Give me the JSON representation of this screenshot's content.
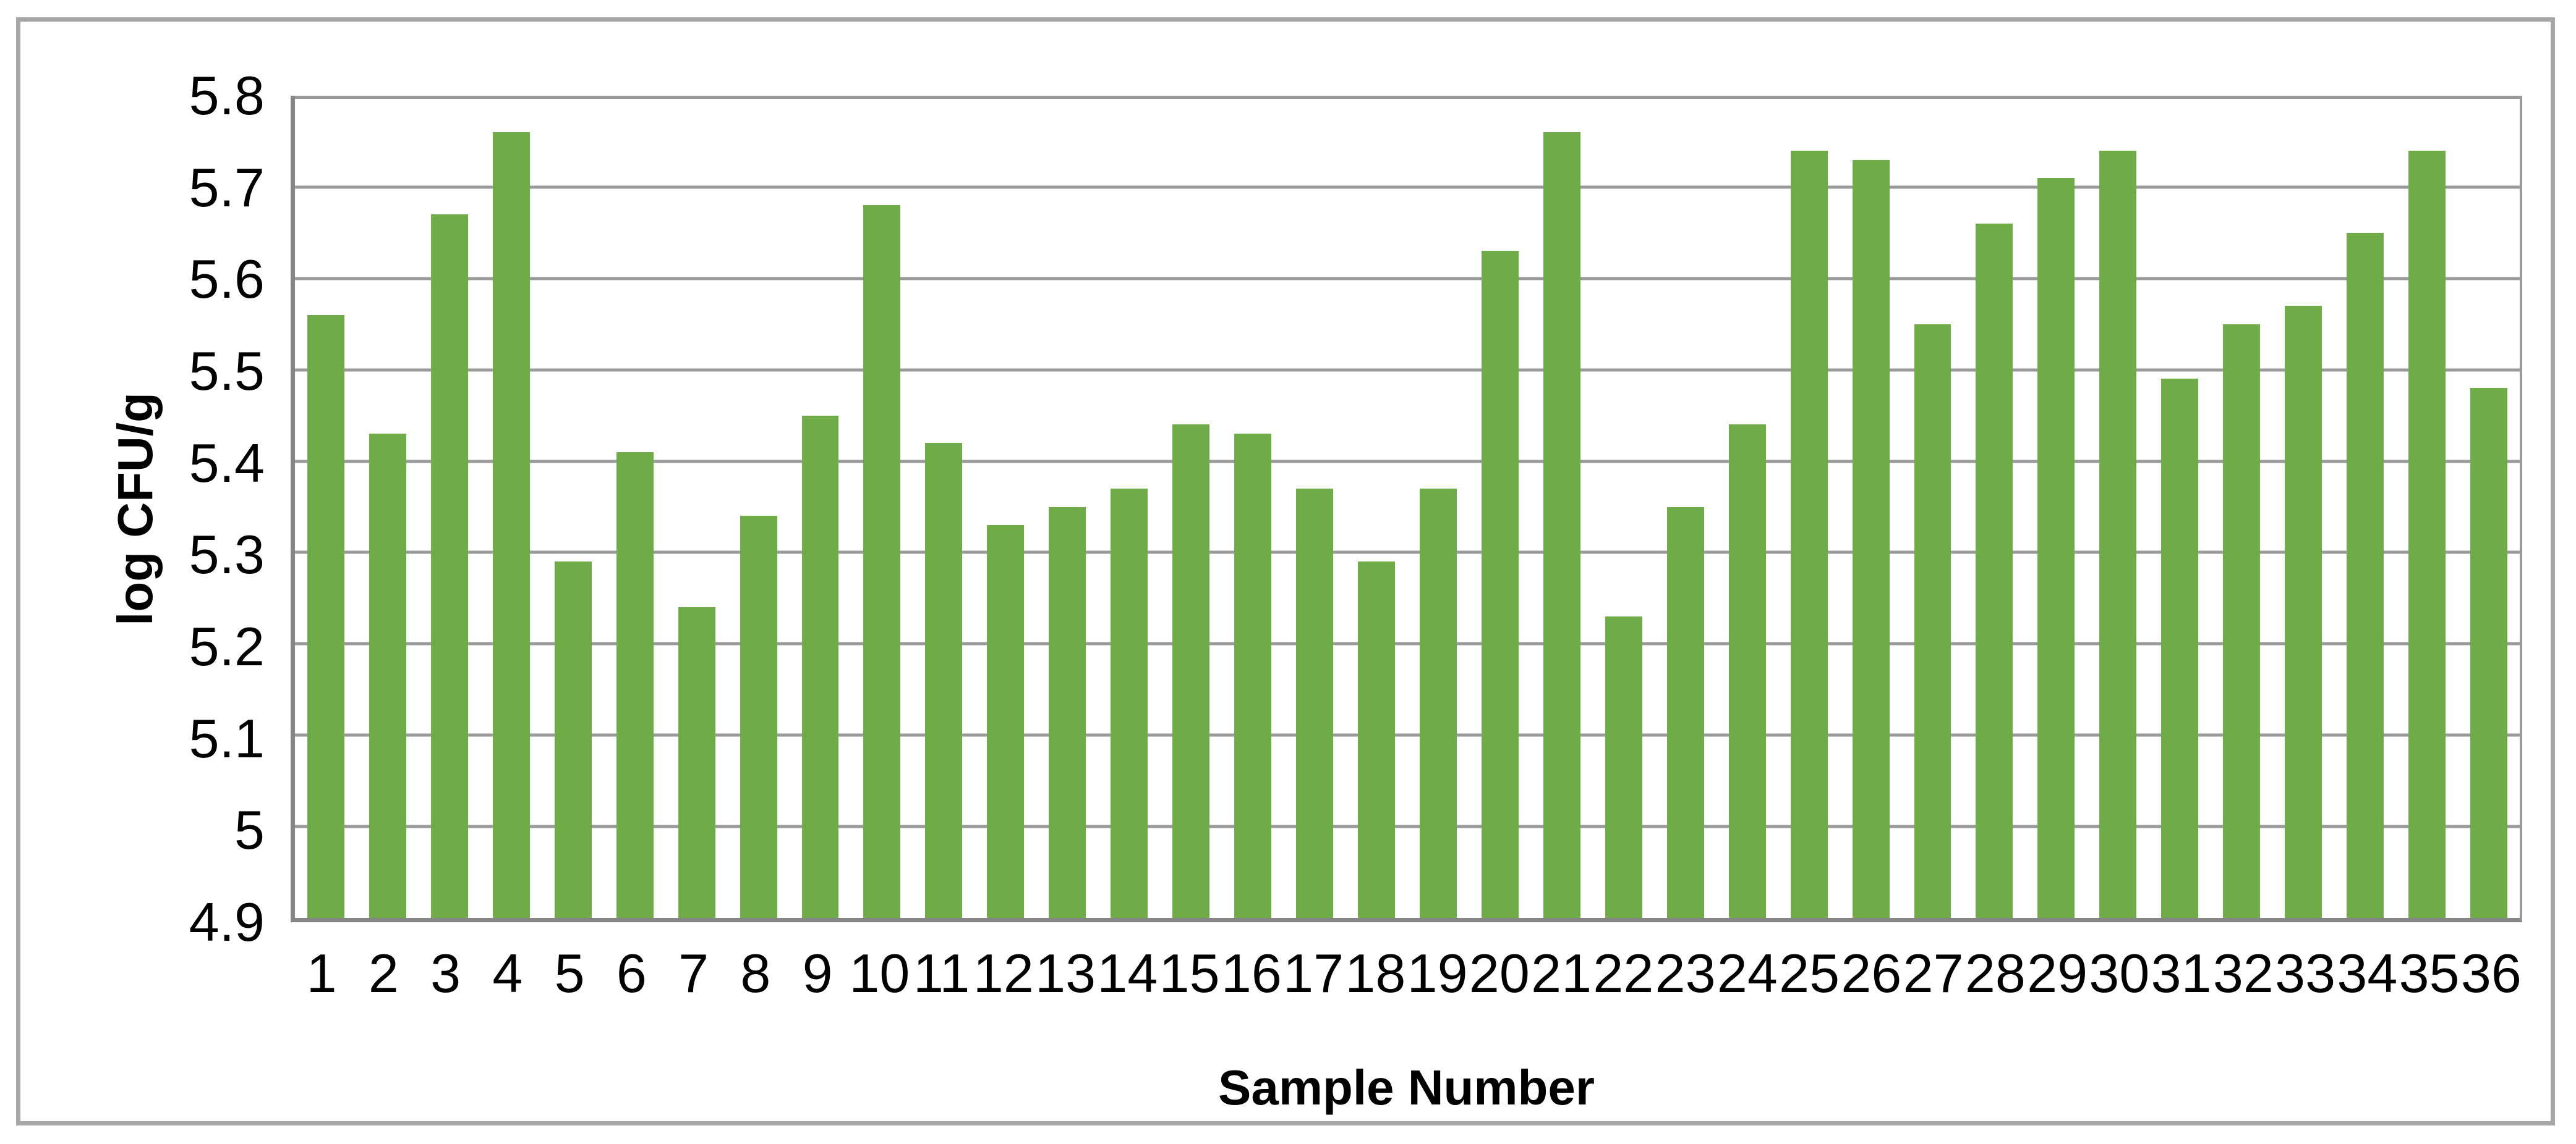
{
  "chart_data": {
    "type": "bar",
    "title": "",
    "xlabel": "Sample Number",
    "ylabel": "log CFU/g",
    "categories": [
      "1",
      "2",
      "3",
      "4",
      "5",
      "6",
      "7",
      "8",
      "9",
      "10",
      "11",
      "12",
      "13",
      "14",
      "15",
      "16",
      "17",
      "18",
      "19",
      "20",
      "21",
      "22",
      "23",
      "24",
      "25",
      "26",
      "27",
      "28",
      "29",
      "30",
      "31",
      "32",
      "33",
      "34",
      "35",
      "36"
    ],
    "values": [
      5.56,
      5.43,
      5.67,
      5.76,
      5.29,
      5.41,
      5.24,
      5.34,
      5.45,
      5.68,
      5.42,
      5.33,
      5.35,
      5.37,
      5.44,
      5.43,
      5.37,
      5.29,
      5.37,
      5.63,
      5.76,
      5.23,
      5.35,
      5.44,
      5.74,
      5.73,
      5.55,
      5.66,
      5.71,
      5.74,
      5.49,
      5.55,
      5.57,
      5.65,
      5.74,
      5.48
    ],
    "ylim": [
      4.9,
      5.8
    ],
    "ytick_step": 0.1,
    "ytick_labels_top_to_bottom": [
      "5.8",
      "5.7",
      "5.6",
      "5.5",
      "5.4",
      "5.3",
      "5.2",
      "5.1",
      "5",
      "4.9"
    ],
    "grid": true,
    "legend": "none",
    "bar_color": "#6fac47",
    "gridline_color": "#9a9a9a",
    "axis_line_color": "#868686",
    "frame_border_color": "#a6a6a6",
    "background_color": "#ffffff",
    "bar_width_fraction_of_pitch": 0.6
  }
}
